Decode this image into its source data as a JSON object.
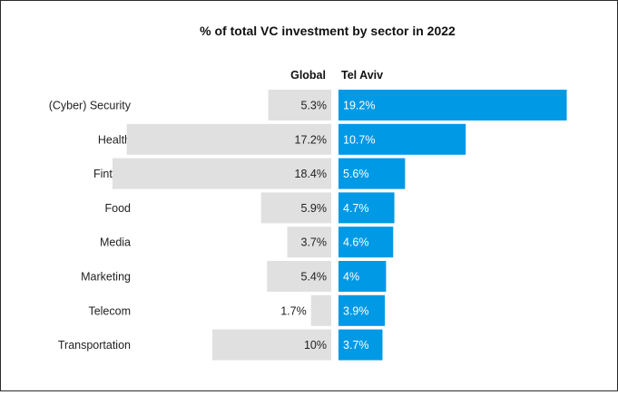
{
  "chart_data": {
    "type": "bar",
    "title": "% of total VC investment by sector in 2022",
    "categories": [
      "(Cyber) Security",
      "Health",
      "Fintech",
      "Food",
      "Media",
      "Marketing",
      "Telecom",
      "Transportation"
    ],
    "series": [
      {
        "name": "Global",
        "values": [
          5.3,
          17.2,
          18.4,
          5.9,
          3.7,
          5.4,
          1.7,
          10
        ],
        "labels": [
          "5.3%",
          "17.2%",
          "18.4%",
          "5.9%",
          "3.7%",
          "5.4%",
          "1.7%",
          "10%"
        ],
        "color": "#e0e0e0"
      },
      {
        "name": "Tel Aviv",
        "values": [
          19.2,
          10.7,
          5.6,
          4.7,
          4.6,
          4.0,
          3.9,
          3.7
        ],
        "labels": [
          "19.2%",
          "10.7%",
          "5.6%",
          "4.7%",
          "4.6%",
          "4%",
          "3.9%",
          "3.7%"
        ],
        "color": "#0099e5"
      }
    ],
    "grid": false,
    "legend": "column headers above bars"
  }
}
